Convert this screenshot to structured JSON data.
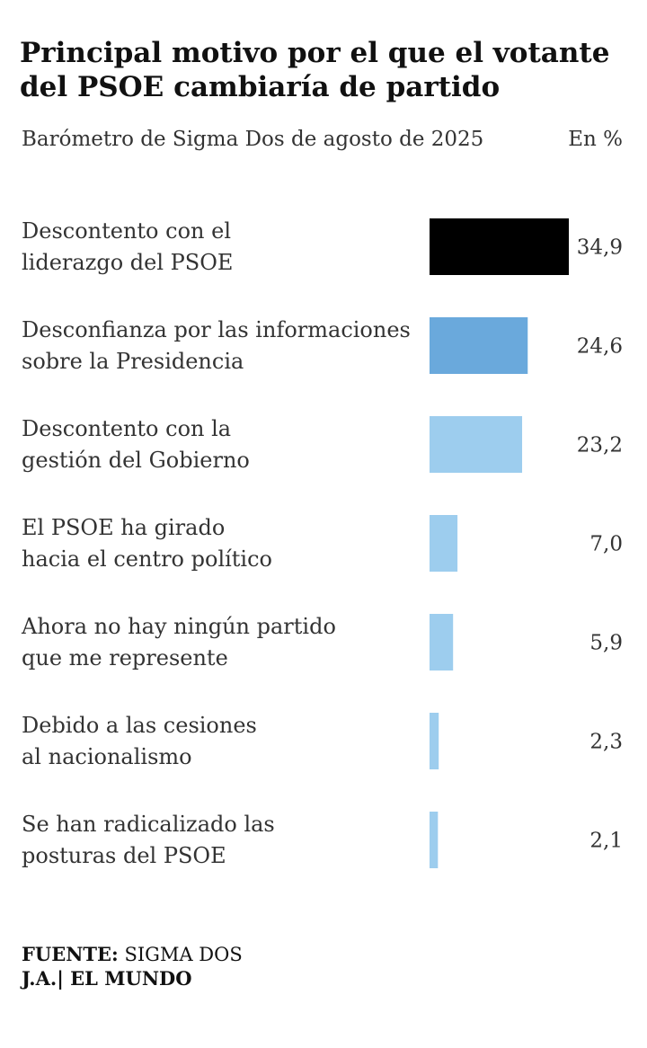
{
  "header": {
    "title": "Principal motivo por el que el votante del PSOE cambiaría de partido",
    "subtitle": "Barómetro de Sigma Dos de agosto de 2025",
    "unit": "En %"
  },
  "footer": {
    "source_key": "FUENTE:",
    "source_value": "SIGMA DOS",
    "credit": "J.A.| EL MUNDO"
  },
  "colors": {
    "first": "#000000",
    "second": "#6aa9dc",
    "rest": "#9dcdee"
  },
  "chart_data": {
    "type": "bar",
    "orientation": "horizontal",
    "categories": [
      [
        "Descontento con el",
        "liderazgo del PSOE"
      ],
      [
        "Desconfianza por las informaciones",
        "sobre la Presidencia"
      ],
      [
        "Descontento con la",
        "gestión del Gobierno"
      ],
      [
        "El PSOE ha girado",
        "hacia el centro político"
      ],
      [
        "Ahora no hay ningún partido",
        "que me represente"
      ],
      [
        "Debido a las cesiones",
        "al nacionalismo"
      ],
      [
        "Se han radicalizado las",
        "posturas del PSOE"
      ]
    ],
    "values": [
      34.9,
      24.6,
      23.2,
      7.0,
      5.9,
      2.3,
      2.1
    ],
    "value_labels": [
      "34,9",
      "24,6",
      "23,2",
      "7,0",
      "5,9",
      "2,3",
      "2,1"
    ],
    "grid": false,
    "legend": "none"
  }
}
